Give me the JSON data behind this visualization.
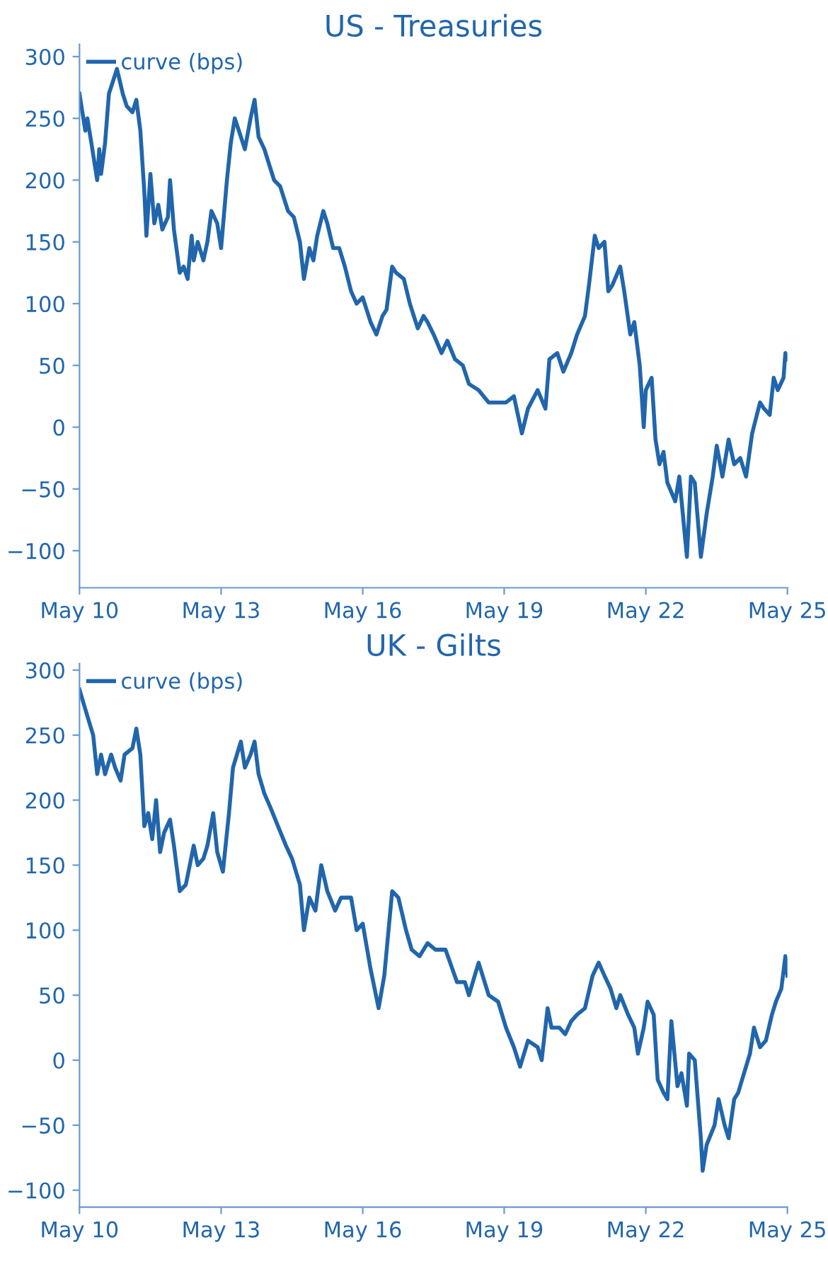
{
  "chart_data": [
    {
      "type": "line",
      "title": "US - Treasuries",
      "xlim": [
        "2010-05-01",
        "2025-05-01"
      ],
      "xticks": [
        {
          "value": "2010-05-01",
          "label": "May 10"
        },
        {
          "value": "2013-05-01",
          "label": "May 13"
        },
        {
          "value": "2016-05-01",
          "label": "May 16"
        },
        {
          "value": "2019-05-01",
          "label": "May 19"
        },
        {
          "value": "2022-05-01",
          "label": "May 22"
        },
        {
          "value": "2025-05-01",
          "label": "May 25"
        }
      ],
      "ylim": [
        -130,
        310
      ],
      "yticks": [
        -100,
        -50,
        0,
        50,
        100,
        150,
        200,
        250,
        300
      ],
      "grid": false,
      "legend": "top left",
      "series": [
        {
          "name": "curve (bps)",
          "color": "#2166ac",
          "x": [
            "2010-05-01",
            "2010-06-15",
            "2010-07-01",
            "2010-08-01",
            "2010-09-15",
            "2010-10-01",
            "2010-10-15",
            "2010-11-15",
            "2010-12-15",
            "2011-01-15",
            "2011-02-15",
            "2011-04-01",
            "2011-05-01",
            "2011-06-15",
            "2011-07-15",
            "2011-08-15",
            "2011-09-15",
            "2011-10-01",
            "2011-11-01",
            "2011-12-01",
            "2012-01-01",
            "2012-02-01",
            "2012-03-15",
            "2012-04-01",
            "2012-05-01",
            "2012-06-15",
            "2012-07-15",
            "2012-08-15",
            "2012-09-15",
            "2012-10-01",
            "2012-11-01",
            "2012-12-15",
            "2013-01-15",
            "2013-02-15",
            "2013-04-01",
            "2013-05-01",
            "2013-06-15",
            "2013-07-15",
            "2013-08-15",
            "2013-10-01",
            "2013-11-01",
            "2013-12-15",
            "2014-01-15",
            "2014-02-15",
            "2014-04-01",
            "2014-05-01",
            "2014-06-15",
            "2014-08-01",
            "2014-10-01",
            "2014-11-15",
            "2015-01-01",
            "2015-02-01",
            "2015-03-15",
            "2015-04-15",
            "2015-05-15",
            "2015-07-01",
            "2015-08-01",
            "2015-09-15",
            "2015-11-01",
            "2015-12-15",
            "2016-02-01",
            "2016-03-15",
            "2016-05-01",
            "2016-07-01",
            "2016-08-15",
            "2016-10-01",
            "2016-11-01",
            "2016-12-15",
            "2017-01-15",
            "2017-03-15",
            "2017-05-01",
            "2017-07-01",
            "2017-08-15",
            "2017-09-15",
            "2017-11-01",
            "2018-01-01",
            "2018-02-15",
            "2018-04-15",
            "2018-06-15",
            "2018-08-01",
            "2018-10-15",
            "2019-01-01",
            "2019-03-15",
            "2019-05-15",
            "2019-07-15",
            "2019-09-15",
            "2019-11-01",
            "2020-01-15",
            "2020-03-15",
            "2020-04-15",
            "2020-06-15",
            "2020-08-01",
            "2020-10-01",
            "2020-11-15",
            "2021-01-15",
            "2021-02-15",
            "2021-04-01",
            "2021-05-01",
            "2021-06-15",
            "2021-07-15",
            "2021-08-15",
            "2021-10-15",
            "2021-11-15",
            "2022-01-01",
            "2022-02-01",
            "2022-03-15",
            "2022-04-15",
            "2022-05-01",
            "2022-06-15",
            "2022-07-15",
            "2022-08-15",
            "2022-09-15",
            "2022-10-15",
            "2022-12-15",
            "2023-01-15",
            "2023-03-15",
            "2023-04-15",
            "2023-05-15",
            "2023-07-01",
            "2023-08-15",
            "2023-10-01",
            "2023-11-01",
            "2023-12-15",
            "2024-02-01",
            "2024-03-15",
            "2024-05-01",
            "2024-06-15",
            "2024-08-01",
            "2024-10-01",
            "2024-11-01",
            "2024-12-15",
            "2025-01-15",
            "2025-02-15",
            "2025-04-01",
            "2025-04-15",
            "2025-05-01"
          ],
          "values": [
            270,
            240,
            250,
            230,
            200,
            225,
            205,
            230,
            270,
            280,
            290,
            270,
            260,
            255,
            265,
            240,
            190,
            155,
            205,
            165,
            180,
            160,
            170,
            200,
            160,
            125,
            130,
            120,
            155,
            135,
            150,
            135,
            150,
            175,
            165,
            145,
            200,
            230,
            250,
            235,
            225,
            250,
            265,
            235,
            225,
            215,
            200,
            195,
            175,
            170,
            150,
            120,
            145,
            135,
            155,
            175,
            165,
            145,
            145,
            130,
            110,
            100,
            105,
            85,
            75,
            90,
            95,
            130,
            125,
            120,
            100,
            80,
            90,
            85,
            75,
            60,
            70,
            55,
            50,
            35,
            30,
            20,
            20,
            20,
            25,
            -5,
            15,
            30,
            15,
            55,
            60,
            45,
            60,
            75,
            90,
            115,
            155,
            145,
            150,
            110,
            115,
            130,
            110,
            75,
            85,
            50,
            0,
            30,
            40,
            -10,
            -30,
            -20,
            -45,
            -60,
            -40,
            -105,
            -40,
            -45,
            -105,
            -70,
            -40,
            -15,
            -40,
            -10,
            -30,
            -25,
            -40,
            -5,
            20,
            15,
            10,
            40,
            30,
            40,
            60,
            55
          ]
        }
      ]
    },
    {
      "type": "line",
      "title": "UK - Gilts",
      "xlim": [
        "2010-05-01",
        "2025-05-01"
      ],
      "xticks": [
        {
          "value": "2010-05-01",
          "label": "May 10"
        },
        {
          "value": "2013-05-01",
          "label": "May 13"
        },
        {
          "value": "2016-05-01",
          "label": "May 16"
        },
        {
          "value": "2019-05-01",
          "label": "May 19"
        },
        {
          "value": "2022-05-01",
          "label": "May 22"
        },
        {
          "value": "2025-05-01",
          "label": "May 25"
        }
      ],
      "ylim": [
        -113,
        305
      ],
      "yticks": [
        -100,
        -50,
        0,
        50,
        100,
        150,
        200,
        250,
        300
      ],
      "grid": false,
      "legend": "top left",
      "series": [
        {
          "name": "curve (bps)",
          "color": "#2166ac",
          "x": [
            "2010-05-01",
            "2010-06-15",
            "2010-07-15",
            "2010-08-15",
            "2010-09-15",
            "2010-10-15",
            "2010-11-15",
            "2011-01-01",
            "2011-02-01",
            "2011-03-15",
            "2011-04-15",
            "2011-06-15",
            "2011-07-15",
            "2011-08-15",
            "2011-09-15",
            "2011-10-15",
            "2011-11-15",
            "2011-12-15",
            "2012-01-15",
            "2012-02-15",
            "2012-04-01",
            "2012-05-01",
            "2012-06-15",
            "2012-08-01",
            "2012-10-01",
            "2012-11-01",
            "2012-12-15",
            "2013-01-15",
            "2013-03-01",
            "2013-04-01",
            "2013-05-15",
            "2013-07-01",
            "2013-08-01",
            "2013-10-01",
            "2013-11-01",
            "2013-12-15",
            "2014-01-15",
            "2014-02-15",
            "2014-04-01",
            "2014-05-15",
            "2014-07-15",
            "2014-09-15",
            "2014-11-01",
            "2015-01-01",
            "2015-02-01",
            "2015-03-15",
            "2015-05-01",
            "2015-06-15",
            "2015-08-01",
            "2015-10-01",
            "2015-11-15",
            "2016-02-01",
            "2016-03-15",
            "2016-05-01",
            "2016-07-01",
            "2016-09-01",
            "2016-10-15",
            "2016-12-15",
            "2017-02-01",
            "2017-04-01",
            "2017-05-15",
            "2017-07-15",
            "2017-08-15",
            "2017-09-15",
            "2017-11-15",
            "2018-02-01",
            "2018-05-01",
            "2018-07-01",
            "2018-08-01",
            "2018-10-15",
            "2019-01-01",
            "2019-03-15",
            "2019-05-15",
            "2019-07-15",
            "2019-09-01",
            "2019-11-01",
            "2020-01-15",
            "2020-02-15",
            "2020-04-01",
            "2020-05-01",
            "2020-07-01",
            "2020-08-15",
            "2020-10-01",
            "2020-11-15",
            "2021-01-15",
            "2021-03-15",
            "2021-05-01",
            "2021-06-15",
            "2021-08-01",
            "2021-09-15",
            "2021-10-15",
            "2021-12-15",
            "2022-02-01",
            "2022-03-01",
            "2022-04-15",
            "2022-05-15",
            "2022-07-01",
            "2022-08-01",
            "2022-09-15",
            "2022-10-15",
            "2022-11-15",
            "2023-01-01",
            "2023-02-01",
            "2023-03-15",
            "2023-04-01",
            "2023-05-15",
            "2023-07-01",
            "2023-07-15",
            "2023-08-15",
            "2023-10-15",
            "2023-11-15",
            "2024-01-01",
            "2024-02-01",
            "2024-03-15",
            "2024-04-15",
            "2024-05-15",
            "2024-07-15",
            "2024-08-15",
            "2024-10-01",
            "2024-11-15",
            "2025-01-01",
            "2025-02-01",
            "2025-03-15",
            "2025-04-15",
            "2025-05-01"
          ],
          "values": [
            285,
            270,
            260,
            250,
            220,
            235,
            220,
            235,
            225,
            215,
            235,
            240,
            255,
            235,
            180,
            190,
            170,
            200,
            160,
            175,
            185,
            165,
            130,
            135,
            165,
            150,
            155,
            165,
            190,
            160,
            145,
            190,
            225,
            245,
            225,
            235,
            245,
            220,
            205,
            195,
            180,
            165,
            155,
            135,
            100,
            125,
            115,
            150,
            130,
            115,
            125,
            125,
            100,
            105,
            70,
            40,
            65,
            130,
            125,
            100,
            85,
            80,
            85,
            90,
            85,
            85,
            60,
            60,
            50,
            75,
            50,
            45,
            25,
            10,
            -5,
            15,
            10,
            0,
            40,
            25,
            25,
            20,
            30,
            35,
            40,
            65,
            75,
            65,
            55,
            40,
            50,
            35,
            25,
            5,
            25,
            45,
            35,
            -15,
            -25,
            -30,
            30,
            -20,
            -10,
            -35,
            5,
            0,
            -60,
            -85,
            -65,
            -50,
            -30,
            -50,
            -60,
            -30,
            -25,
            -15,
            5,
            25,
            10,
            15,
            35,
            45,
            55,
            80,
            65
          ]
        }
      ]
    }
  ]
}
